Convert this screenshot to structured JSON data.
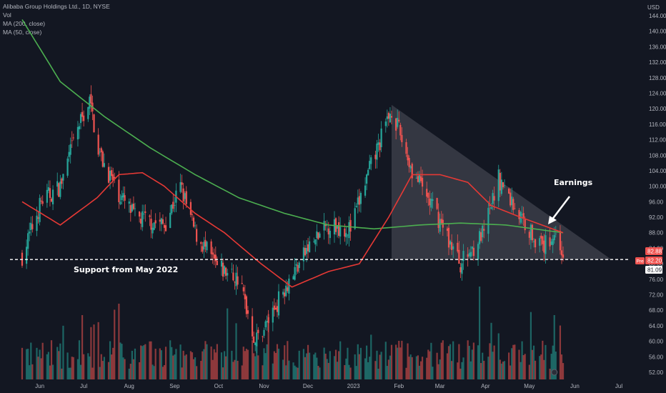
{
  "legend": {
    "title": "Alibaba Group Holdings Ltd., 1D, NYSE",
    "vol": "Vol",
    "ma200": "MA (200, close)",
    "ma50": "MA (50, close)"
  },
  "currency": "USD",
  "colors": {
    "background": "#131722",
    "up": "#26a69a",
    "down": "#ef5350",
    "ma200": "#4caf50",
    "ma50": "#e53935",
    "triangle": "#5d606b",
    "price_tag": "#ef5350"
  },
  "annotations": {
    "support_label": "Support from May 2022",
    "earnings_label": "Earnings"
  },
  "price_tags": {
    "last": "82.88",
    "pre_label": "Pre",
    "pre": "82.20",
    "support": "81.09"
  },
  "chart_data": {
    "type": "candlestick",
    "title": "Alibaba Group Holdings Ltd., 1D, NYSE",
    "y_ticks": [
      "144.00",
      "140.00",
      "136.00",
      "132.00",
      "128.00",
      "124.00",
      "120.00",
      "116.00",
      "112.00",
      "108.00",
      "104.00",
      "100.00",
      "96.00",
      "92.00",
      "88.00",
      "84.00",
      "80.00",
      "76.00",
      "72.00",
      "68.00",
      "64.00",
      "60.00",
      "56.00",
      "52.00"
    ],
    "x_ticks": [
      "Jun",
      "Jul",
      "Aug",
      "Sep",
      "Oct",
      "Nov",
      "Dec",
      "2023",
      "Feb",
      "Mar",
      "Apr",
      "May",
      "Jun",
      "Jul"
    ],
    "price_path": [
      [
        "2022-05-20",
        82
      ],
      [
        "2022-06-02",
        96
      ],
      [
        "2022-06-15",
        100
      ],
      [
        "2022-06-27",
        115
      ],
      [
        "2022-07-05",
        122
      ],
      [
        "2022-07-12",
        108
      ],
      [
        "2022-07-25",
        98
      ],
      [
        "2022-08-05",
        92
      ],
      [
        "2022-08-25",
        90
      ],
      [
        "2022-09-05",
        100
      ],
      [
        "2022-09-15",
        88
      ],
      [
        "2022-09-30",
        79
      ],
      [
        "2022-10-15",
        76
      ],
      [
        "2022-10-26",
        60
      ],
      [
        "2022-11-05",
        66
      ],
      [
        "2022-11-15",
        74
      ],
      [
        "2022-12-01",
        84
      ],
      [
        "2022-12-15",
        90
      ],
      [
        "2022-12-30",
        89
      ],
      [
        "2023-01-10",
        102
      ],
      [
        "2023-01-27",
        120
      ],
      [
        "2023-02-10",
        104
      ],
      [
        "2023-02-25",
        94
      ],
      [
        "2023-03-15",
        80
      ],
      [
        "2023-03-31",
        88
      ],
      [
        "2023-04-10",
        102
      ],
      [
        "2023-04-25",
        92
      ],
      [
        "2023-05-10",
        84
      ],
      [
        "2023-05-18",
        88
      ],
      [
        "2023-05-24",
        82.88
      ]
    ],
    "ma200_path": [
      [
        "2022-05-20",
        143
      ],
      [
        "2022-06-15",
        127
      ],
      [
        "2022-07-15",
        118
      ],
      [
        "2022-08-15",
        110
      ],
      [
        "2022-09-15",
        103
      ],
      [
        "2022-10-15",
        97
      ],
      [
        "2022-11-15",
        93
      ],
      [
        "2022-12-15",
        90
      ],
      [
        "2023-01-15",
        89
      ],
      [
        "2023-02-15",
        90
      ],
      [
        "2023-03-15",
        90.5
      ],
      [
        "2023-04-15",
        90
      ],
      [
        "2023-05-24",
        88
      ]
    ],
    "ma50_path": [
      [
        "2022-05-20",
        96
      ],
      [
        "2022-06-15",
        90
      ],
      [
        "2022-07-10",
        97
      ],
      [
        "2022-07-25",
        103
      ],
      [
        "2022-08-10",
        103.5
      ],
      [
        "2022-08-25",
        100
      ],
      [
        "2022-09-15",
        93
      ],
      [
        "2022-10-05",
        88
      ],
      [
        "2022-10-30",
        80
      ],
      [
        "2022-11-20",
        74
      ],
      [
        "2022-12-15",
        78
      ],
      [
        "2023-01-05",
        80
      ],
      [
        "2023-01-25",
        92
      ],
      [
        "2023-02-10",
        103
      ],
      [
        "2023-03-01",
        103
      ],
      [
        "2023-03-20",
        101
      ],
      [
        "2023-04-05",
        95
      ],
      [
        "2023-04-25",
        92
      ],
      [
        "2023-05-24",
        88
      ]
    ],
    "support_level": 81.09,
    "triangle": [
      [
        "2023-01-27",
        121
      ],
      [
        "2023-06-26",
        81.09
      ],
      [
        "2023-01-27",
        81.09
      ]
    ],
    "earnings_date": "2023-05-18"
  }
}
